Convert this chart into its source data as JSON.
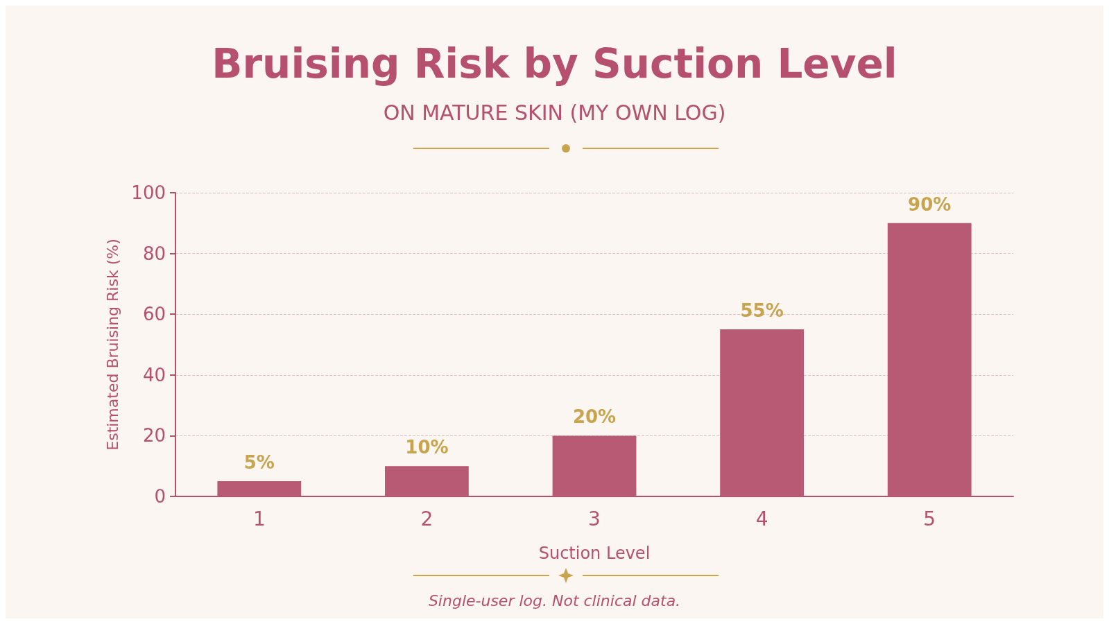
{
  "chart_data": {
    "type": "bar",
    "title": "Bruising Risk by Suction Level",
    "subtitle": "ON MATURE SKIN (MY OWN LOG)",
    "xlabel": "Suction Level",
    "ylabel": "Estimated Bruising Risk (%)",
    "categories": [
      "1",
      "2",
      "3",
      "4",
      "5"
    ],
    "values": [
      5,
      10,
      20,
      55,
      90
    ],
    "value_labels": [
      "5%",
      "10%",
      "20%",
      "55%",
      "90%"
    ],
    "color": "#b85a74",
    "ylim": [
      0,
      100
    ],
    "yticks": [
      0,
      20,
      40,
      60,
      80,
      100
    ],
    "grid": "y",
    "annotations": [
      "Single-user log. Not clinical data."
    ]
  }
}
